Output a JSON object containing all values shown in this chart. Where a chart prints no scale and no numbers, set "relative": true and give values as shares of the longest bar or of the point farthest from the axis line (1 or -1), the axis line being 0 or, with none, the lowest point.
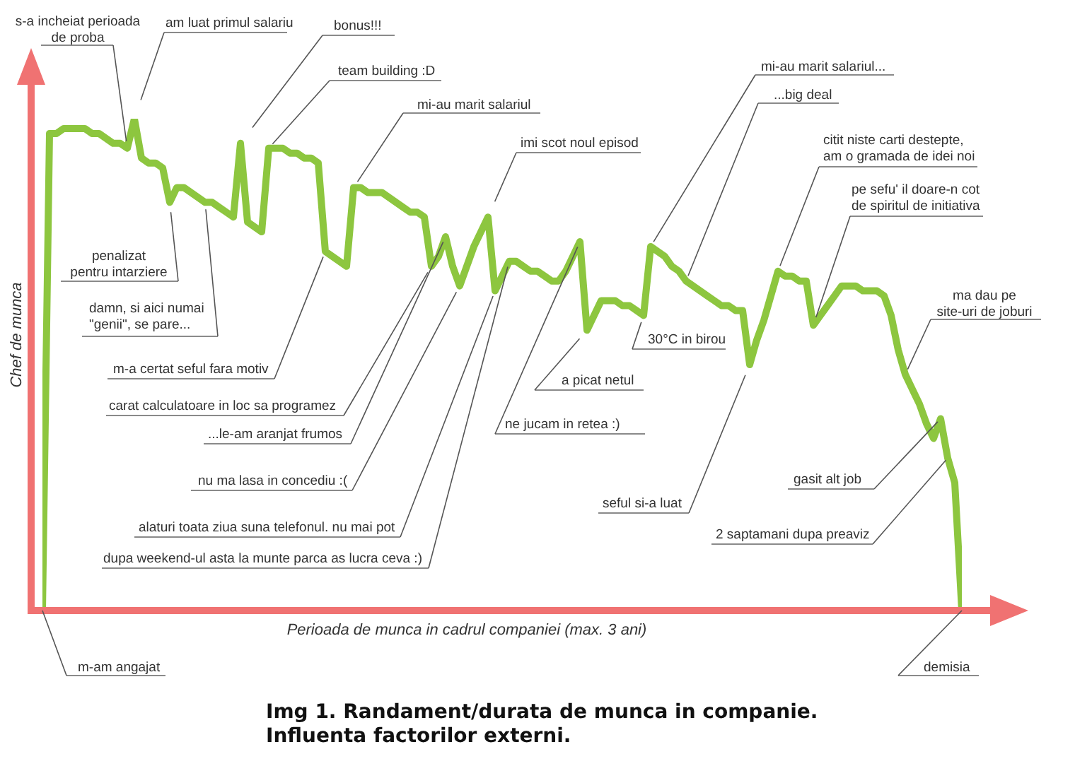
{
  "chart_data": {
    "type": "line",
    "title": "Img 1. Randament/durata de munca in companie.\nInfluenta factorilor externi.",
    "xlabel": "Perioada de munca in cadrul companiei (max. 3 ani)",
    "ylabel": "Chef de munca",
    "relative": true,
    "categories": [
      null,
      null,
      null,
      null,
      null,
      null,
      null,
      null,
      null,
      null,
      null,
      null,
      null,
      null,
      null,
      null,
      null,
      null,
      null,
      null,
      null,
      null,
      null,
      null,
      null,
      null,
      null,
      null,
      null,
      null,
      null,
      null,
      null,
      null,
      null,
      null,
      null,
      null,
      null,
      null,
      null,
      null,
      null,
      null,
      null,
      null,
      null,
      null,
      null,
      null,
      null,
      null,
      null,
      null,
      null,
      null,
      null,
      null,
      null,
      null,
      null,
      null,
      null,
      null,
      null,
      null,
      null,
      null,
      null,
      null,
      null,
      null,
      null,
      null,
      null,
      null,
      null,
      null,
      null,
      null,
      null,
      null,
      null,
      null,
      null,
      null,
      null,
      null,
      null,
      null,
      null,
      null,
      null,
      null,
      null,
      null,
      null,
      null,
      null,
      null,
      null,
      null,
      null,
      null,
      null,
      null,
      null,
      null,
      null,
      null,
      null,
      null,
      null,
      null,
      null,
      null,
      null,
      null,
      null,
      null,
      null,
      null,
      null,
      null,
      null,
      null,
      null,
      null,
      null,
      null,
      null
    ],
    "color": "#8dc63f",
    "values": [
      0,
      0.97,
      0.97,
      0.98,
      0.98,
      0.98,
      0.98,
      0.97,
      0.97,
      0.96,
      0.95,
      0.95,
      0.94,
      1,
      0.92,
      0.91,
      0.91,
      0.9,
      0.83,
      0.86,
      0.86,
      0.85,
      0.84,
      0.83,
      0.83,
      0.82,
      0.81,
      0.8,
      0.95,
      0.79,
      0.78,
      0.77,
      0.94,
      0.94,
      0.94,
      0.93,
      0.93,
      0.92,
      0.92,
      0.91,
      0.73,
      0.72,
      0.71,
      0.7,
      0.86,
      0.86,
      0.85,
      0.85,
      0.85,
      0.84,
      0.83,
      0.82,
      0.81,
      0.81,
      0.8,
      0.7,
      0.72,
      0.76,
      0.7,
      0.66,
      0.7,
      0.74,
      0.77,
      0.8,
      0.65,
      0.68,
      0.71,
      0.71,
      0.7,
      0.69,
      0.69,
      0.68,
      0.67,
      0.67,
      0.69,
      0.72,
      0.75,
      0.57,
      0.6,
      0.63,
      0.63,
      0.63,
      0.62,
      0.62,
      0.61,
      0.6,
      0.74,
      0.73,
      0.72,
      0.7,
      0.69,
      0.67,
      0.66,
      0.65,
      0.64,
      0.63,
      0.62,
      0.62,
      0.61,
      0.61,
      0.5,
      0.55,
      0.59,
      0.64,
      0.69,
      0.68,
      0.68,
      0.67,
      0.67,
      0.58,
      0.6,
      0.62,
      0.64,
      0.66,
      0.66,
      0.66,
      0.65,
      0.65,
      0.65,
      0.64,
      0.6,
      0.53,
      0.48,
      0.45,
      0.42,
      0.38,
      0.35,
      0.39,
      0.31,
      0.26,
      0
    ],
    "annotations": [
      "s-a incheiat perioada\nde proba",
      "am luat primul salariu",
      "bonus!!!",
      "team building :D",
      "mi-au marit salariul",
      "imi scot noul episod",
      "mi-au marit salariul...",
      "...big deal",
      "citit niste carti destepte,\nam o gramada de idei noi",
      "pe sefu' il doare-n cot\nde spiritul de initiativa",
      "ma dau pe\nsite-uri de joburi",
      "penalizat\npentru intarziere",
      "damn, si aici numai\n\"genii\", se pare...",
      "m-a certat seful fara motiv",
      "carat calculatoare in loc sa programez",
      "...le-am aranjat frumos",
      "nu ma lasa in concediu :(",
      "alaturi toata ziua suna telefonul. nu mai pot",
      "dupa weekend-ul asta la munte parca as lucra ceva :)",
      "ne jucam in retea :)",
      "a picat netul",
      "30°C in birou",
      "seful si-a luat",
      "gasit alt job",
      "2 saptamani dupa preaviz",
      "m-am angajat",
      "demisia"
    ]
  }
}
